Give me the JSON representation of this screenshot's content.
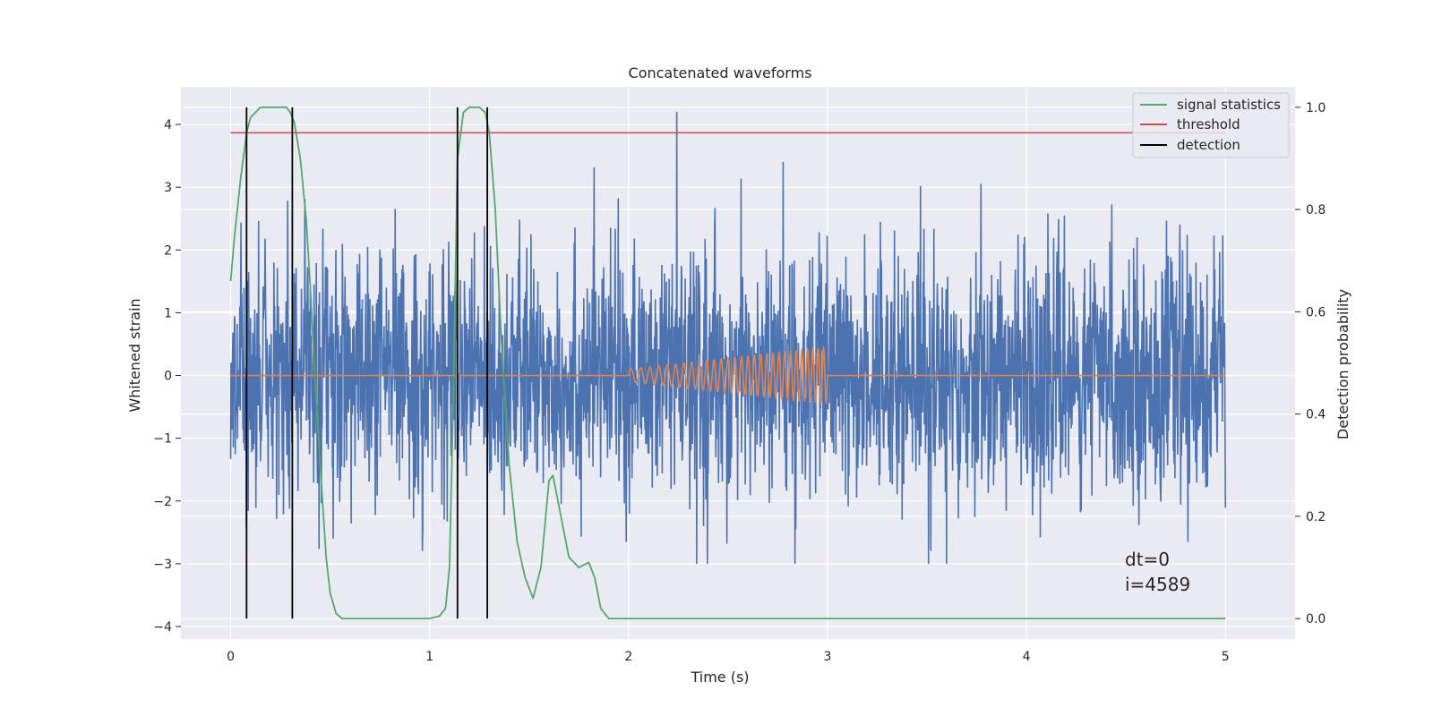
{
  "chart_data": {
    "type": "line",
    "title": "Concatenated waveforms",
    "xlabel": "Time (s)",
    "ylabel": "Whitened strain",
    "y2label": "Detection probability",
    "xlim": [
      -0.25,
      5.35
    ],
    "ylim": [
      -4.2,
      4.6
    ],
    "y2lim": [
      -0.04,
      1.04
    ],
    "xticks": [
      0,
      1,
      2,
      3,
      4,
      5
    ],
    "yticks": [
      -4,
      -3,
      -2,
      -1,
      0,
      1,
      2,
      3,
      4
    ],
    "y2ticks": [
      0.0,
      0.2,
      0.4,
      0.6,
      0.8,
      1.0
    ],
    "xtick_labels": [
      "0",
      "1",
      "2",
      "3",
      "4",
      "5"
    ],
    "ytick_labels": [
      "−4",
      "−3",
      "−2",
      "−1",
      "0",
      "1",
      "2",
      "3",
      "4"
    ],
    "y2tick_labels": [
      "0.0",
      "0.2",
      "0.4",
      "0.6",
      "0.8",
      "1.0"
    ],
    "grid": true,
    "legend_position": "top-right",
    "legend": [
      {
        "label": "signal statistics",
        "color": "#55a868"
      },
      {
        "label": "threshold",
        "color": "#c44e52"
      },
      {
        "label": "detection",
        "color": "#000000"
      }
    ],
    "series": [
      {
        "name": "whitened strain",
        "axis": "left",
        "color": "#4c72b0",
        "x_range": [
          0,
          5
        ],
        "amplitude_range": [
          -3.0,
          4.2
        ]
      },
      {
        "name": "injected waveform",
        "axis": "left",
        "color": "#dd8452",
        "chirp_start": 2.0,
        "chirp_end": 3.0,
        "amplitude_start": 0.1,
        "amplitude_end": 0.45
      },
      {
        "name": "signal statistics",
        "axis": "right",
        "color": "#55a868",
        "x": [
          0.0,
          0.02,
          0.05,
          0.08,
          0.1,
          0.15,
          0.2,
          0.25,
          0.28,
          0.3,
          0.32,
          0.35,
          0.38,
          0.4,
          0.42,
          0.45,
          0.48,
          0.5,
          0.53,
          0.56,
          0.6,
          0.8,
          1.0,
          1.05,
          1.08,
          1.1,
          1.12,
          1.14,
          1.17,
          1.2,
          1.25,
          1.28,
          1.3,
          1.33,
          1.36,
          1.4,
          1.44,
          1.48,
          1.52,
          1.56,
          1.6,
          1.62,
          1.65,
          1.7,
          1.75,
          1.8,
          1.83,
          1.86,
          1.9,
          2.0,
          3.0,
          4.0,
          5.0
        ],
        "y": [
          0.66,
          0.75,
          0.86,
          0.95,
          0.98,
          1.0,
          1.0,
          1.0,
          1.0,
          0.99,
          0.97,
          0.9,
          0.78,
          0.65,
          0.5,
          0.3,
          0.12,
          0.05,
          0.01,
          0.0,
          0.0,
          0.0,
          0.0,
          0.005,
          0.02,
          0.1,
          0.45,
          0.9,
          0.99,
          1.0,
          1.0,
          0.99,
          0.95,
          0.8,
          0.55,
          0.3,
          0.15,
          0.08,
          0.04,
          0.1,
          0.27,
          0.28,
          0.22,
          0.12,
          0.1,
          0.11,
          0.08,
          0.02,
          0.0,
          0.0,
          0.0,
          0.0,
          0.0
        ]
      },
      {
        "name": "threshold",
        "axis": "right",
        "color": "#c44e52",
        "x": [
          0,
          5
        ],
        "y": [
          0.95,
          0.95
        ]
      }
    ],
    "detections": [
      0.08,
      0.31,
      1.14,
      1.29
    ],
    "annotations": [
      "dt=0",
      "i=4589"
    ]
  }
}
